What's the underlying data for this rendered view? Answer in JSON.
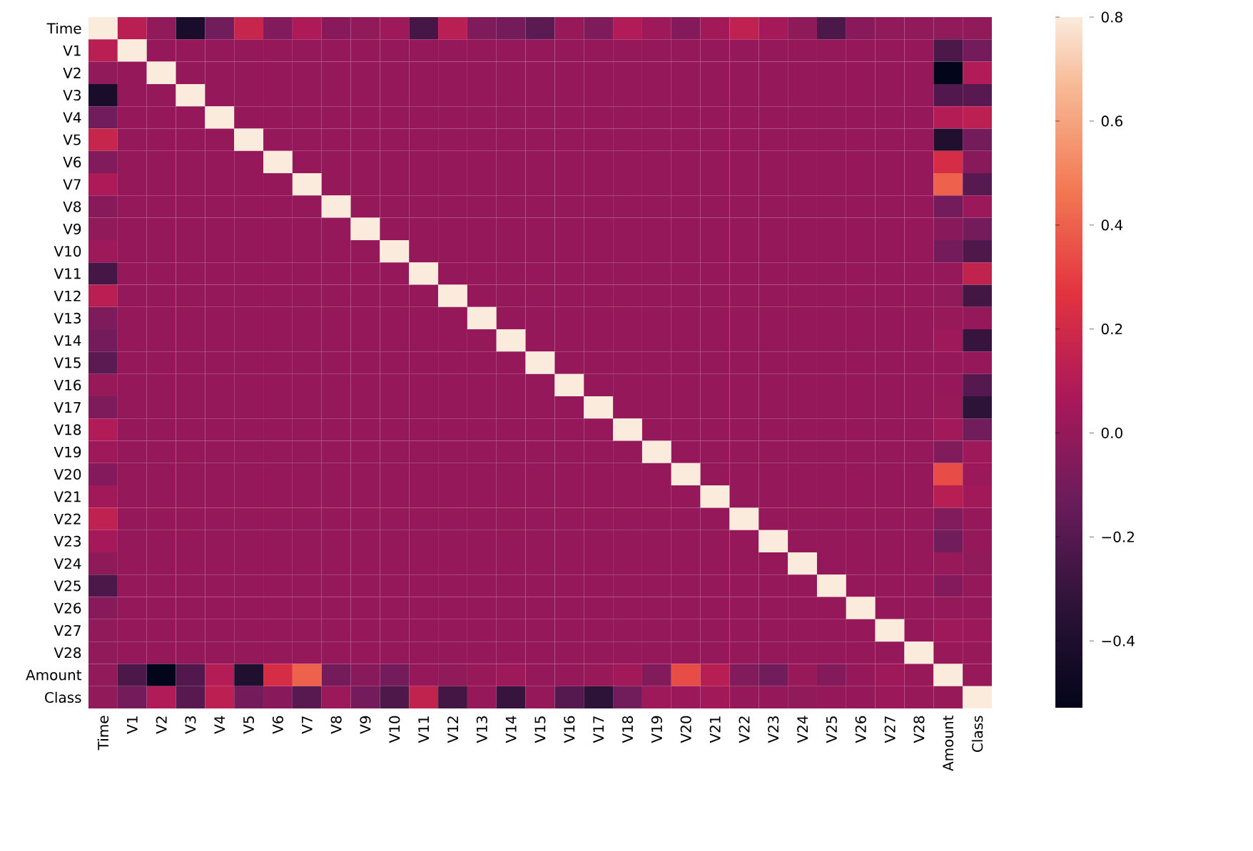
{
  "chart_data": {
    "type": "heatmap",
    "categories": [
      "Time",
      "V1",
      "V2",
      "V3",
      "V4",
      "V5",
      "V6",
      "V7",
      "V8",
      "V9",
      "V10",
      "V11",
      "V12",
      "V13",
      "V14",
      "V15",
      "V16",
      "V17",
      "V18",
      "V19",
      "V20",
      "V21",
      "V22",
      "V23",
      "V24",
      "V25",
      "V26",
      "V27",
      "V28",
      "Amount",
      "Class"
    ],
    "y_categories": [
      "Time",
      "V1",
      "V2",
      "V3",
      "V4",
      "V5",
      "V6",
      "V7",
      "V8",
      "V9",
      "V10",
      "V11",
      "V12",
      "V13",
      "V14",
      "V15",
      "V16",
      "V17",
      "V18",
      "V19",
      "V20",
      "V21",
      "V22",
      "V23",
      "V24",
      "V25",
      "V26",
      "V27",
      "V28",
      "Amount",
      "Class"
    ],
    "cells": [
      [
        1,
        0.12,
        -0.01,
        -0.42,
        -0.11,
        0.17,
        -0.06,
        0.08,
        -0.04,
        -0.01,
        0.03,
        -0.25,
        0.12,
        -0.07,
        -0.1,
        -0.18,
        0.01,
        -0.07,
        0.09,
        0.03,
        -0.05,
        0.04,
        0.14,
        0.05,
        -0.02,
        -0.23,
        -0.04,
        -0.01,
        -0.01,
        -0.01,
        -0.01
      ],
      [
        0.12,
        1,
        0,
        0,
        0,
        0,
        0,
        0,
        0,
        0,
        0,
        0,
        0,
        0,
        0,
        0,
        0,
        0,
        0,
        0,
        0,
        0,
        0,
        0,
        0,
        0,
        0,
        0,
        0,
        -0.23,
        -0.1
      ],
      [
        -0.01,
        0,
        1,
        0,
        0,
        0,
        0,
        0,
        0,
        0,
        0,
        0,
        0,
        0,
        0,
        0,
        0,
        0,
        0,
        0,
        0,
        0,
        0,
        0,
        0,
        0,
        0,
        0,
        0,
        -0.53,
        0.09
      ],
      [
        -0.42,
        0,
        0,
        1,
        0,
        0,
        0,
        0,
        0,
        0,
        0,
        0,
        0,
        0,
        0,
        0,
        0,
        0,
        0,
        0,
        0,
        0,
        0,
        0,
        0,
        0,
        0,
        0,
        0,
        -0.21,
        -0.19
      ],
      [
        -0.11,
        0,
        0,
        0,
        1,
        0,
        0,
        0,
        0,
        0,
        0,
        0,
        0,
        0,
        0,
        0,
        0,
        0,
        0,
        0,
        0,
        0,
        0,
        0,
        0,
        0,
        0,
        0,
        0,
        0.1,
        0.13
      ],
      [
        0.17,
        0,
        0,
        0,
        0,
        1,
        0,
        0,
        0,
        0,
        0,
        0,
        0,
        0,
        0,
        0,
        0,
        0,
        0,
        0,
        0,
        0,
        0,
        0,
        0,
        0,
        0,
        0,
        0,
        -0.39,
        -0.1
      ],
      [
        -0.06,
        0,
        0,
        0,
        0,
        0,
        1,
        0,
        0,
        0,
        0,
        0,
        0,
        0,
        0,
        0,
        0,
        0,
        0,
        0,
        0,
        0,
        0,
        0,
        0,
        0,
        0,
        0,
        0,
        0.22,
        -0.04
      ],
      [
        0.08,
        0,
        0,
        0,
        0,
        0,
        0,
        1,
        0,
        0,
        0,
        0,
        0,
        0,
        0,
        0,
        0,
        0,
        0,
        0,
        0,
        0,
        0,
        0,
        0,
        0,
        0,
        0,
        0,
        0.4,
        -0.19
      ],
      [
        -0.04,
        0,
        0,
        0,
        0,
        0,
        0,
        0,
        1,
        0,
        0,
        0,
        0,
        0,
        0,
        0,
        0,
        0,
        0,
        0,
        0,
        0,
        0,
        0,
        0,
        0,
        0,
        0,
        0,
        -0.1,
        0.02
      ],
      [
        -0.01,
        0,
        0,
        0,
        0,
        0,
        0,
        0,
        0,
        1,
        0,
        0,
        0,
        0,
        0,
        0,
        0,
        0,
        0,
        0,
        0,
        0,
        0,
        0,
        0,
        0,
        0,
        0,
        0,
        -0.04,
        -0.1
      ],
      [
        0.03,
        0,
        0,
        0,
        0,
        0,
        0,
        0,
        0,
        0,
        1,
        0,
        0,
        0,
        0,
        0,
        0,
        0,
        0,
        0,
        0,
        0,
        0,
        0,
        0,
        0,
        0,
        0,
        0,
        -0.1,
        -0.22
      ],
      [
        -0.25,
        0,
        0,
        0,
        0,
        0,
        0,
        0,
        0,
        0,
        0,
        1,
        0,
        0,
        0,
        0,
        0,
        0,
        0,
        0,
        0,
        0,
        0,
        0,
        0,
        0,
        0,
        0,
        0,
        0,
        0.15
      ],
      [
        0.12,
        0,
        0,
        0,
        0,
        0,
        0,
        0,
        0,
        0,
        0,
        0,
        1,
        0,
        0,
        0,
        0,
        0,
        0,
        0,
        0,
        0,
        0,
        0,
        0,
        0,
        0,
        0,
        0,
        -0.01,
        -0.26
      ],
      [
        -0.07,
        0,
        0,
        0,
        0,
        0,
        0,
        0,
        0,
        0,
        0,
        0,
        0,
        1,
        0,
        0,
        0,
        0,
        0,
        0,
        0,
        0,
        0,
        0,
        0,
        0,
        0,
        0,
        0,
        0.01,
        0
      ],
      [
        -0.1,
        0,
        0,
        0,
        0,
        0,
        0,
        0,
        0,
        0,
        0,
        0,
        0,
        0,
        1,
        0,
        0,
        0,
        0,
        0,
        0,
        0,
        0,
        0,
        0,
        0,
        0,
        0,
        0,
        0.03,
        -0.3
      ],
      [
        -0.18,
        0,
        0,
        0,
        0,
        0,
        0,
        0,
        0,
        0,
        0,
        0,
        0,
        0,
        0,
        1,
        0,
        0,
        0,
        0,
        0,
        0,
        0,
        0,
        0,
        0,
        0,
        0,
        0,
        0,
        0
      ],
      [
        0.01,
        0,
        0,
        0,
        0,
        0,
        0,
        0,
        0,
        0,
        0,
        0,
        0,
        0,
        0,
        0,
        1,
        0,
        0,
        0,
        0,
        0,
        0,
        0,
        0,
        0,
        0,
        0,
        0,
        0,
        -0.2
      ],
      [
        -0.07,
        0,
        0,
        0,
        0,
        0,
        0,
        0,
        0,
        0,
        0,
        0,
        0,
        0,
        0,
        0,
        0,
        1,
        0,
        0,
        0,
        0,
        0,
        0,
        0,
        0,
        0,
        0,
        0,
        0.01,
        -0.33
      ],
      [
        0.09,
        0,
        0,
        0,
        0,
        0,
        0,
        0,
        0,
        0,
        0,
        0,
        0,
        0,
        0,
        0,
        0,
        0,
        1,
        0,
        0,
        0,
        0,
        0,
        0,
        0,
        0,
        0,
        0,
        0.04,
        -0.11
      ],
      [
        0.03,
        0,
        0,
        0,
        0,
        0,
        0,
        0,
        0,
        0,
        0,
        0,
        0,
        0,
        0,
        0,
        0,
        0,
        0,
        1,
        0,
        0,
        0,
        0,
        0,
        0,
        0,
        0,
        0,
        -0.06,
        0.03
      ],
      [
        -0.05,
        0,
        0,
        0,
        0,
        0,
        0,
        0,
        0,
        0,
        0,
        0,
        0,
        0,
        0,
        0,
        0,
        0,
        0,
        0,
        1,
        0,
        0,
        0,
        0,
        0,
        0,
        0,
        0,
        0.34,
        0.02
      ],
      [
        0.04,
        0,
        0,
        0,
        0,
        0,
        0,
        0,
        0,
        0,
        0,
        0,
        0,
        0,
        0,
        0,
        0,
        0,
        0,
        0,
        0,
        1,
        0,
        0,
        0,
        0,
        0,
        0,
        0,
        0.11,
        0.04
      ],
      [
        0.14,
        0,
        0,
        0,
        0,
        0,
        0,
        0,
        0,
        0,
        0,
        0,
        0,
        0,
        0,
        0,
        0,
        0,
        0,
        0,
        0,
        0,
        1,
        0,
        0,
        0,
        0,
        0,
        0,
        -0.06,
        0
      ],
      [
        0.05,
        0,
        0,
        0,
        0,
        0,
        0,
        0,
        0,
        0,
        0,
        0,
        0,
        0,
        0,
        0,
        0,
        0,
        0,
        0,
        0,
        0,
        0,
        1,
        0,
        0,
        0,
        0,
        0,
        -0.11,
        0
      ],
      [
        -0.02,
        0,
        0,
        0,
        0,
        0,
        0,
        0,
        0,
        0,
        0,
        0,
        0,
        0,
        0,
        0,
        0,
        0,
        0,
        0,
        0,
        0,
        0,
        0,
        1,
        0,
        0,
        0,
        0,
        0.01,
        -0.01
      ],
      [
        -0.23,
        0,
        0,
        0,
        0,
        0,
        0,
        0,
        0,
        0,
        0,
        0,
        0,
        0,
        0,
        0,
        0,
        0,
        0,
        0,
        0,
        0,
        0,
        0,
        0,
        1,
        0,
        0,
        0,
        -0.05,
        0
      ],
      [
        -0.04,
        0,
        0,
        0,
        0,
        0,
        0,
        0,
        0,
        0,
        0,
        0,
        0,
        0,
        0,
        0,
        0,
        0,
        0,
        0,
        0,
        0,
        0,
        0,
        0,
        0,
        1,
        0,
        0,
        0,
        0
      ],
      [
        -0.01,
        0,
        0,
        0,
        0,
        0,
        0,
        0,
        0,
        0,
        0,
        0,
        0,
        0,
        0,
        0,
        0,
        0,
        0,
        0,
        0,
        0,
        0,
        0,
        0,
        0,
        0,
        1,
        0,
        0.03,
        0.02
      ],
      [
        -0.01,
        0,
        0,
        0,
        0,
        0,
        0,
        0,
        0,
        0,
        0,
        0,
        0,
        0,
        0,
        0,
        0,
        0,
        0,
        0,
        0,
        0,
        0,
        0,
        0,
        0,
        0,
        0,
        1,
        0.01,
        0.01
      ],
      [
        -0.01,
        -0.23,
        -0.53,
        -0.21,
        0.1,
        -0.39,
        0.22,
        0.4,
        -0.1,
        -0.04,
        -0.1,
        0,
        -0.01,
        0.01,
        0.03,
        0,
        0,
        0.01,
        0.04,
        -0.06,
        0.34,
        0.11,
        -0.06,
        -0.11,
        0.01,
        -0.05,
        0,
        0.03,
        0.01,
        1,
        0.01
      ],
      [
        -0.01,
        -0.1,
        0.09,
        -0.19,
        0.13,
        -0.1,
        -0.04,
        -0.19,
        0.02,
        -0.1,
        -0.22,
        0.15,
        -0.26,
        0,
        -0.3,
        0,
        -0.2,
        -0.33,
        -0.11,
        0.03,
        0.02,
        0.04,
        0,
        0,
        -0.01,
        0,
        0,
        0.02,
        0.01,
        0.01,
        1
      ]
    ],
    "clim": [
      -0.53,
      0.8
    ],
    "cticks": [
      {
        "value": -0.4,
        "label": "−0.4"
      },
      {
        "value": -0.2,
        "label": "−0.2"
      },
      {
        "value": 0,
        "label": "0.0"
      },
      0.2,
      0.4,
      0.6,
      0.8
    ]
  }
}
